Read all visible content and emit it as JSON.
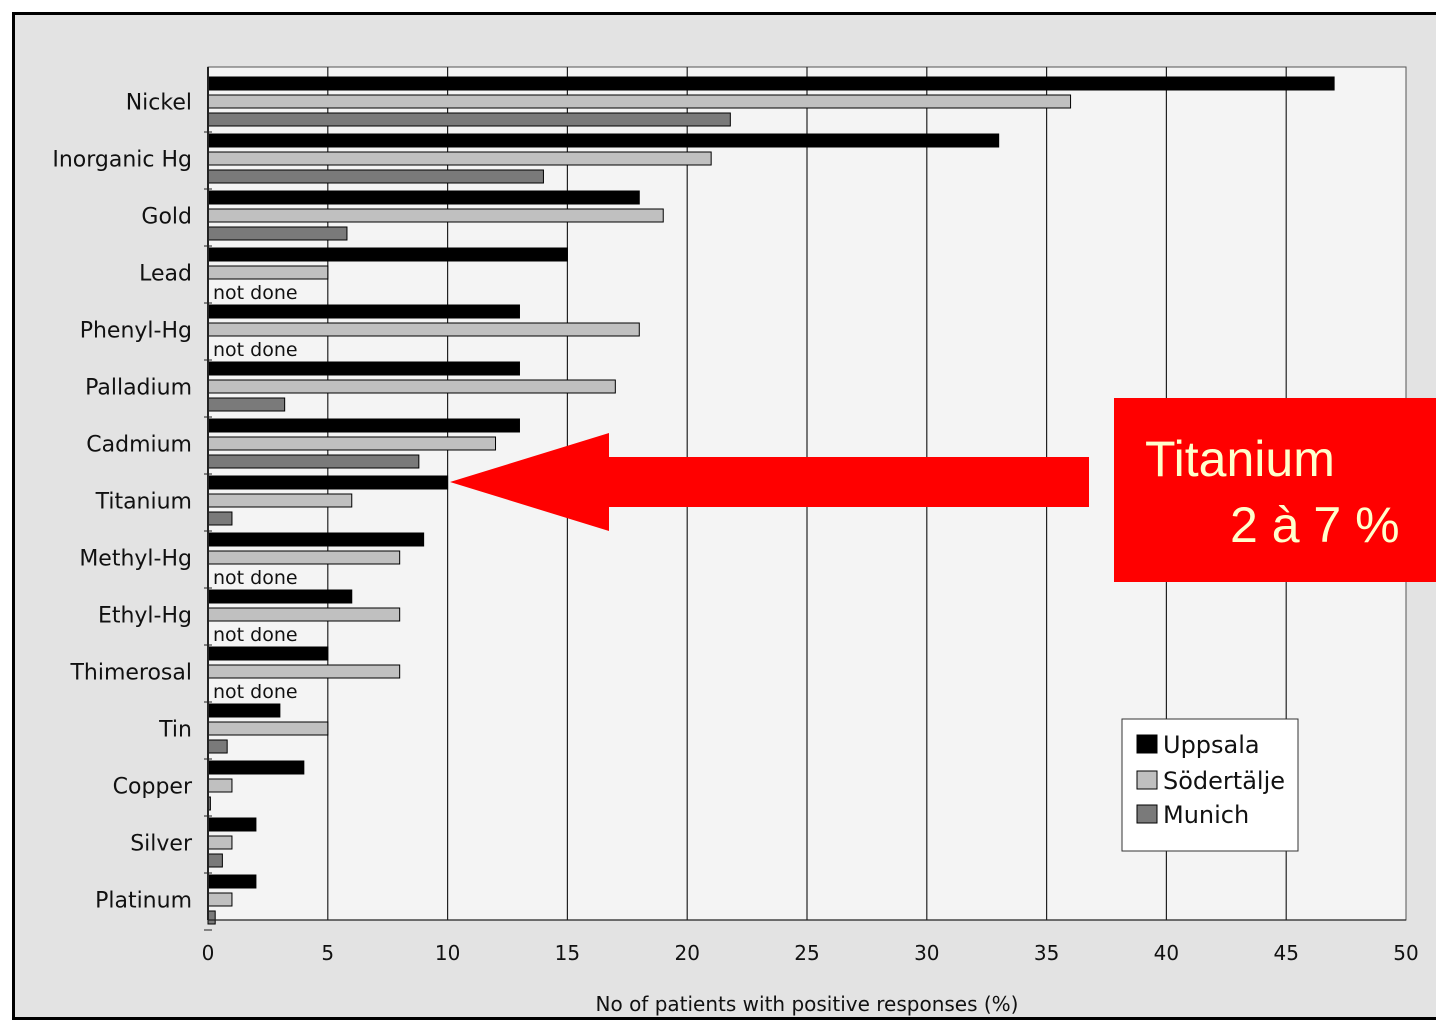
{
  "chart_data": {
    "type": "bar",
    "orientation": "horizontal",
    "categories": [
      "Nickel",
      "Inorganic Hg",
      "Gold",
      "Lead",
      "Phenyl-Hg",
      "Palladium",
      "Cadmium",
      "Titanium",
      "Methyl-Hg",
      "Ethyl-Hg",
      "Thimerosal",
      "Tin",
      "Copper",
      "Silver",
      "Platinum"
    ],
    "series": [
      {
        "name": "Uppsala",
        "color": "#000000",
        "values": [
          47,
          33,
          18,
          15,
          13,
          13,
          13,
          10,
          9,
          6,
          5,
          3,
          4,
          2,
          2
        ]
      },
      {
        "name": "Södertälje",
        "color": "#c0c0c0",
        "values": [
          36,
          21,
          19,
          5,
          18,
          17,
          12,
          6,
          8,
          8,
          8,
          5,
          1,
          1,
          1
        ]
      },
      {
        "name": "Munich",
        "color": "#7a7a7a",
        "values": [
          21.8,
          14,
          5.8,
          null,
          null,
          3.2,
          8.8,
          1,
          null,
          null,
          null,
          0.8,
          0.1,
          0.6,
          0.3
        ]
      }
    ],
    "missing_label": "not done",
    "xlabel": "No of patients with positive responses (%)",
    "xlim": [
      0,
      50
    ],
    "xticks": [
      0,
      5,
      10,
      15,
      20,
      25,
      30,
      35,
      40,
      45,
      50
    ],
    "grid": "vertical",
    "legend": "bottom-right"
  },
  "callout": {
    "line1": "Titanium",
    "line2": "2 à 7 %",
    "target": "Titanium",
    "color": "#ff0000"
  }
}
